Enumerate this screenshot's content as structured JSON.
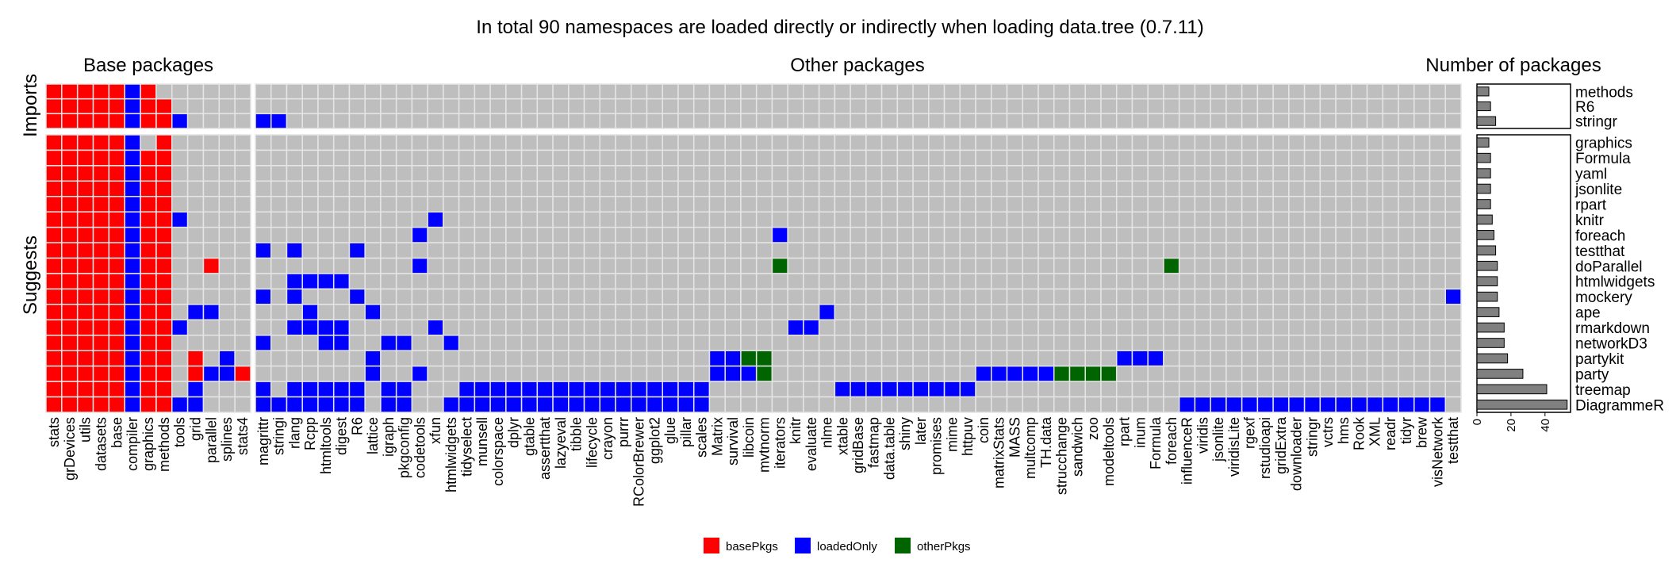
{
  "chart_data": {
    "type": "heatmap",
    "title": "In total 90 namespaces are loaded directly or indirectly when loading data.tree (0.7.11)",
    "panel_titles": {
      "base": "Base packages",
      "other": "Other packages",
      "count": "Number of packages"
    },
    "group_labels": {
      "imports": "Imports",
      "suggests": "Suggests"
    },
    "colors": {
      "basePkgs": "#ff0000",
      "loadedOnly": "#0000ff",
      "otherPkgs": "#006400",
      "empty": "#bebebe",
      "grid": "#e5e5e5",
      "bar": "#808080"
    },
    "legend": {
      "position": "bottom",
      "entries": [
        {
          "key": "B",
          "label": "basePkgs",
          "color": "#ff0000"
        },
        {
          "key": "L",
          "label": "loadedOnly",
          "color": "#0000ff"
        },
        {
          "key": "O",
          "label": "otherPkgs",
          "color": "#006400"
        }
      ]
    },
    "base_columns": [
      "stats",
      "grDevices",
      "utils",
      "datasets",
      "base",
      "compiler",
      "graphics",
      "methods",
      "tools",
      "grid",
      "parallel",
      "splines",
      "stats4"
    ],
    "other_columns": [
      "magrittr",
      "stringi",
      "rlang",
      "Rcpp",
      "htmltools",
      "digest",
      "R6",
      "lattice",
      "igraph",
      "pkgconfig",
      "codetools",
      "xfun",
      "htmlwidgets",
      "tidyselect",
      "munsell",
      "colorspace",
      "dplyr",
      "gtable",
      "assertthat",
      "lazyeval",
      "tibble",
      "lifecycle",
      "crayon",
      "purrr",
      "RColorBrewer",
      "ggplot2",
      "glue",
      "pillar",
      "scales",
      "Matrix",
      "survival",
      "libcoin",
      "mvtnorm",
      "iterators",
      "knitr",
      "evaluate",
      "nlme",
      "xtable",
      "gridBase",
      "fastmap",
      "data.table",
      "shiny",
      "later",
      "promises",
      "mime",
      "httpuv",
      "coin",
      "matrixStats",
      "MASS",
      "multcomp",
      "TH.data",
      "strucchange",
      "sandwich",
      "zoo",
      "modeltools",
      "rpart",
      "inum",
      "Formula",
      "foreach",
      "influenceR",
      "viridis",
      "jsonlite",
      "viridisLite",
      "rgexf",
      "rstudioapi",
      "gridExtra",
      "downloader",
      "stringr",
      "vctrs",
      "hms",
      "Rook",
      "XML",
      "readr",
      "tidyr",
      "brew",
      "visNetwork",
      "testthat"
    ],
    "imports": {
      "rows": [
        "methods",
        "R6",
        "stringr"
      ],
      "counts": [
        7,
        8,
        11
      ],
      "cells": {
        "methods": {
          "base": "BBBBBLBBoooo o",
          "other": ""
        },
        "R6": {
          "base": "BBBBBLBBoooooo",
          "other": ""
        },
        "stringr": {
          "base": "BBBBBLBBLooooo",
          "other": "LL"
        }
      }
    },
    "suggests": {
      "rows": [
        "graphics",
        "Formula",
        "yaml",
        "jsonlite",
        "rpart",
        "knitr",
        "foreach",
        "testthat",
        "doParallel",
        "htmlwidgets",
        "mockery",
        "ape",
        "rmarkdown",
        "networkD3",
        "partykit",
        "party",
        "treemap",
        "DiagrammeR"
      ],
      "counts": [
        7,
        8,
        8,
        8,
        8,
        9,
        10,
        11,
        12,
        12,
        12,
        13,
        16,
        16,
        18,
        27,
        41,
        53
      ]
    },
    "xaxis_ticks": [
      0,
      20,
      40
    ],
    "xaxis_max": 55
  }
}
